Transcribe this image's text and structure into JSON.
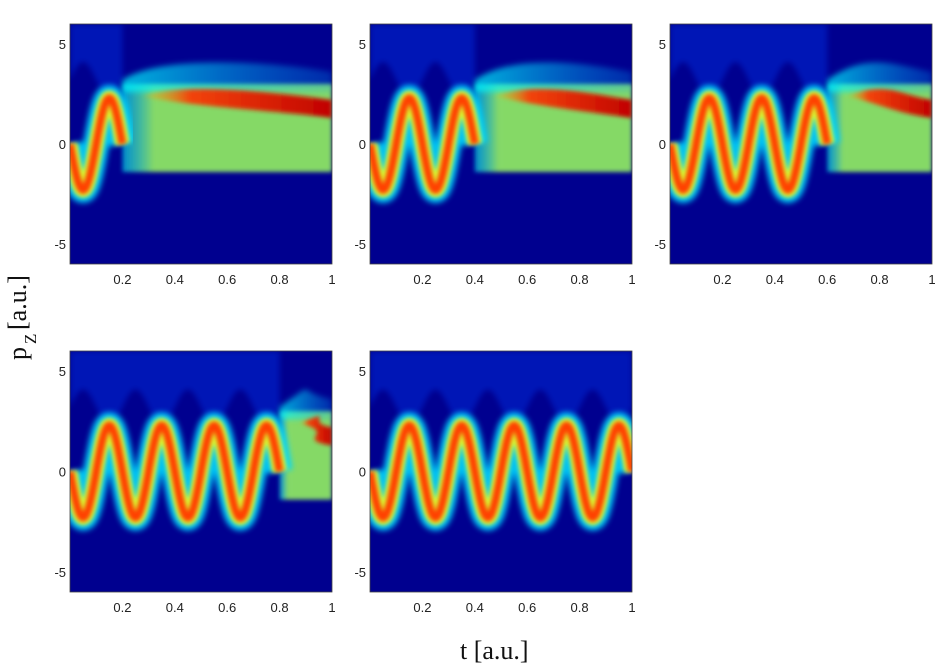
{
  "chart_data": {
    "type": "heatmap",
    "xlabel": "t [a.u.]",
    "ylabel_main": "p",
    "ylabel_sub": "Z",
    "ylabel_unit": "[a.u.]",
    "xlim": [
      0,
      1
    ],
    "ylim": [
      -6,
      6
    ],
    "x_ticks": [
      "0.2",
      "0.4",
      "0.6",
      "0.8",
      "1"
    ],
    "y_ticks": [
      "5",
      "0",
      "-5"
    ],
    "colormap": [
      "#00008f",
      "#0000ff",
      "#00ffff",
      "#ffff00",
      "#ff0000",
      "#800000"
    ],
    "background_color": "#00008f",
    "panels": [
      {
        "name": "panel-1",
        "oscillations": 1,
        "field_end_t": 0.2
      },
      {
        "name": "panel-2",
        "oscillations": 2,
        "field_end_t": 0.4
      },
      {
        "name": "panel-3",
        "oscillations": 3,
        "field_end_t": 0.6
      },
      {
        "name": "panel-4",
        "oscillations": 4,
        "field_end_t": 0.8
      },
      {
        "name": "panel-5",
        "oscillations": 5,
        "field_end_t": 1.0
      }
    ]
  }
}
